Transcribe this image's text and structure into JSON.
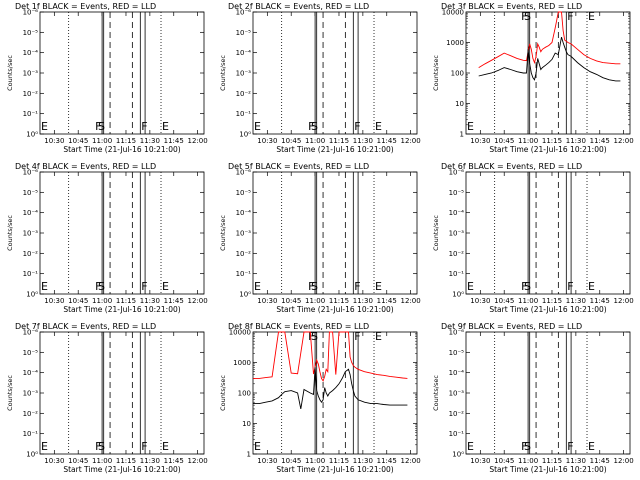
{
  "common": {
    "xlabel": "Start Time (21-Jul-16 10:21:00)",
    "ylabel": "Counts/sec",
    "x_ticks": [
      {
        "label": "10:30",
        "t": 9
      },
      {
        "label": "10:45",
        "t": 24
      },
      {
        "label": "11:00",
        "t": 39
      },
      {
        "label": "11:15",
        "t": 54
      },
      {
        "label": "11:30",
        "t": 69
      },
      {
        "label": "11:45",
        "t": 84
      },
      {
        "label": "12:00",
        "t": 99
      }
    ],
    "xlim": [
      0,
      103
    ],
    "ylim_log": [
      0,
      4
    ],
    "y_ticks_sci": [
      "10⁻⁶",
      "10⁻⁵",
      "10⁻⁴",
      "10⁻³",
      "10⁻²",
      "10⁻¹",
      "10⁰"
    ],
    "y_ticks_plain": [
      "1",
      "10",
      "100",
      "1000",
      "10000"
    ],
    "markers": [
      {
        "t": 18,
        "style": "dotted",
        "label": "E",
        "label_at": "left"
      },
      {
        "t": 39,
        "style": "solid",
        "label": "F",
        "label_at": "right-of-prev"
      },
      {
        "t": 40,
        "style": "solid",
        "label": "",
        "label_at": ""
      },
      {
        "t": 44,
        "style": "dashed",
        "label": "S",
        "label_at": "right"
      },
      {
        "t": 58,
        "style": "dashed",
        "label": "",
        "label_at": ""
      },
      {
        "t": 63,
        "style": "solid",
        "label": "F",
        "label_at": "right"
      },
      {
        "t": 66,
        "style": "solid",
        "label": "",
        "label_at": ""
      },
      {
        "t": 76,
        "style": "dotted",
        "label": "E",
        "label_at": "right"
      }
    ],
    "colors": {
      "events": "#000000",
      "lld": "#ff0000",
      "axis": "#000000"
    }
  },
  "panels": [
    {
      "title": "Det 1f BLACK = Events, RED = LLD",
      "has_data": false
    },
    {
      "title": "Det 2f BLACK = Events, RED = LLD",
      "has_data": false
    },
    {
      "title": "Det 3f BLACK = Events, RED = LLD",
      "has_data": true
    },
    {
      "title": "Det 4f BLACK = Events, RED = LLD",
      "has_data": false
    },
    {
      "title": "Det 5f BLACK = Events, RED = LLD",
      "has_data": false
    },
    {
      "title": "Det 6f BLACK = Events, RED = LLD",
      "has_data": false
    },
    {
      "title": "Det 7f BLACK = Events, RED = LLD",
      "has_data": false
    },
    {
      "title": "Det 8f BLACK = Events, RED = LLD",
      "has_data": true
    },
    {
      "title": "Det 9f BLACK = Events, RED = LLD",
      "has_data": false
    }
  ],
  "chart_data": [
    {
      "type": "line",
      "title": "Det 1f BLACK = Events, RED = LLD",
      "xlabel": "Start Time (21-Jul-16 10:21:00)",
      "ylabel": "Counts/sec",
      "series": []
    },
    {
      "type": "line",
      "title": "Det 2f BLACK = Events, RED = LLD",
      "xlabel": "Start Time (21-Jul-16 10:21:00)",
      "ylabel": "Counts/sec",
      "series": []
    },
    {
      "type": "line",
      "title": "Det 3f BLACK = Events, RED = LLD",
      "xlabel": "Start Time (21-Jul-16 10:21:00)",
      "ylabel": "Counts/sec",
      "y_scale": "log",
      "ylim": [
        1,
        10000
      ],
      "series": [
        {
          "color": "#ff0000",
          "x": [
            8,
            12,
            16,
            20,
            24,
            28,
            32,
            36,
            38,
            39,
            40,
            41,
            42,
            43,
            44,
            45,
            46,
            47,
            48,
            50,
            52,
            54,
            56,
            58,
            60,
            61,
            62,
            63,
            64,
            66,
            70,
            74,
            78,
            82,
            86,
            90,
            94,
            97
          ],
          "y": [
            150,
            200,
            260,
            340,
            450,
            370,
            300,
            260,
            255,
            500,
            900,
            600,
            300,
            220,
            350,
            900,
            700,
            500,
            600,
            700,
            800,
            1000,
            3000,
            10000,
            10000,
            2500,
            1200,
            1100,
            1000,
            900,
            600,
            400,
            300,
            250,
            220,
            210,
            200,
            200
          ]
        },
        {
          "color": "#000000",
          "x": [
            8,
            12,
            16,
            20,
            24,
            28,
            32,
            36,
            38,
            39,
            40,
            41,
            42,
            43,
            44,
            45,
            46,
            47,
            48,
            50,
            52,
            54,
            56,
            58,
            60,
            61,
            62,
            63,
            64,
            66,
            70,
            74,
            78,
            82,
            86,
            90,
            94,
            97
          ],
          "y": [
            80,
            90,
            100,
            120,
            150,
            130,
            110,
            100,
            100,
            600,
            200,
            100,
            70,
            60,
            100,
            300,
            200,
            130,
            150,
            180,
            220,
            280,
            450,
            400,
            1500,
            1000,
            700,
            500,
            400,
            350,
            220,
            150,
            110,
            90,
            70,
            60,
            55,
            55
          ]
        }
      ]
    },
    {
      "type": "line",
      "title": "Det 4f BLACK = Events, RED = LLD",
      "xlabel": "Start Time (21-Jul-16 10:21:00)",
      "ylabel": "Counts/sec",
      "series": []
    },
    {
      "type": "line",
      "title": "Det 5f BLACK = Events, RED = LLD",
      "xlabel": "Start Time (21-Jul-16 10:21:00)",
      "ylabel": "Counts/sec",
      "series": []
    },
    {
      "type": "line",
      "title": "Det 6f BLACK = Events, RED = LLD",
      "xlabel": "Start Time (21-Jul-16 10:21:00)",
      "ylabel": "Counts/sec",
      "series": []
    },
    {
      "type": "line",
      "title": "Det 7f BLACK = Events, RED = LLD",
      "xlabel": "Start Time (21-Jul-16 10:21:00)",
      "ylabel": "Counts/sec",
      "series": []
    },
    {
      "type": "line",
      "title": "Det 8f BLACK = Events, RED = LLD",
      "xlabel": "Start Time (21-Jul-16 10:21:00)",
      "ylabel": "Counts/sec",
      "y_scale": "log",
      "ylim": [
        1,
        10000
      ],
      "series": [
        {
          "color": "#ff0000",
          "x": [
            0,
            4,
            8,
            12,
            16,
            20,
            24,
            28,
            32,
            36,
            38,
            39,
            40,
            41,
            42,
            43,
            44,
            45,
            46,
            47,
            48,
            50,
            52,
            54,
            56,
            58,
            60,
            61,
            62,
            63,
            64,
            66,
            70,
            74,
            78,
            82,
            86,
            90,
            94,
            97
          ],
          "y": [
            300,
            300,
            320,
            340,
            10000,
            10000,
            450,
            430,
            10000,
            10000,
            420,
            700,
            1200,
            900,
            500,
            300,
            250,
            350,
            600,
            500,
            10000,
            10000,
            400,
            10000,
            10000,
            10000,
            10000,
            1500,
            1000,
            800,
            700,
            600,
            500,
            450,
            400,
            380,
            350,
            330,
            310,
            300
          ]
        },
        {
          "color": "#000000",
          "x": [
            0,
            4,
            8,
            12,
            16,
            18,
            20,
            24,
            28,
            30,
            32,
            36,
            38,
            39,
            40,
            41,
            42,
            43,
            44,
            45,
            46,
            47,
            48,
            50,
            52,
            54,
            56,
            58,
            60,
            61,
            62,
            63,
            64,
            66,
            70,
            74,
            78,
            82,
            86,
            90,
            94,
            97
          ],
          "y": [
            45,
            45,
            50,
            55,
            70,
            90,
            110,
            120,
            100,
            30,
            130,
            100,
            90,
            700,
            120,
            80,
            60,
            50,
            60,
            150,
            100,
            80,
            100,
            120,
            150,
            200,
            300,
            500,
            600,
            400,
            200,
            120,
            80,
            60,
            50,
            45,
            45,
            42,
            40,
            40,
            40,
            40
          ]
        }
      ]
    },
    {
      "type": "line",
      "title": "Det 9f BLACK = Events, RED = LLD",
      "xlabel": "Start Time (21-Jul-16 10:21:00)",
      "ylabel": "Counts/sec",
      "series": []
    }
  ]
}
